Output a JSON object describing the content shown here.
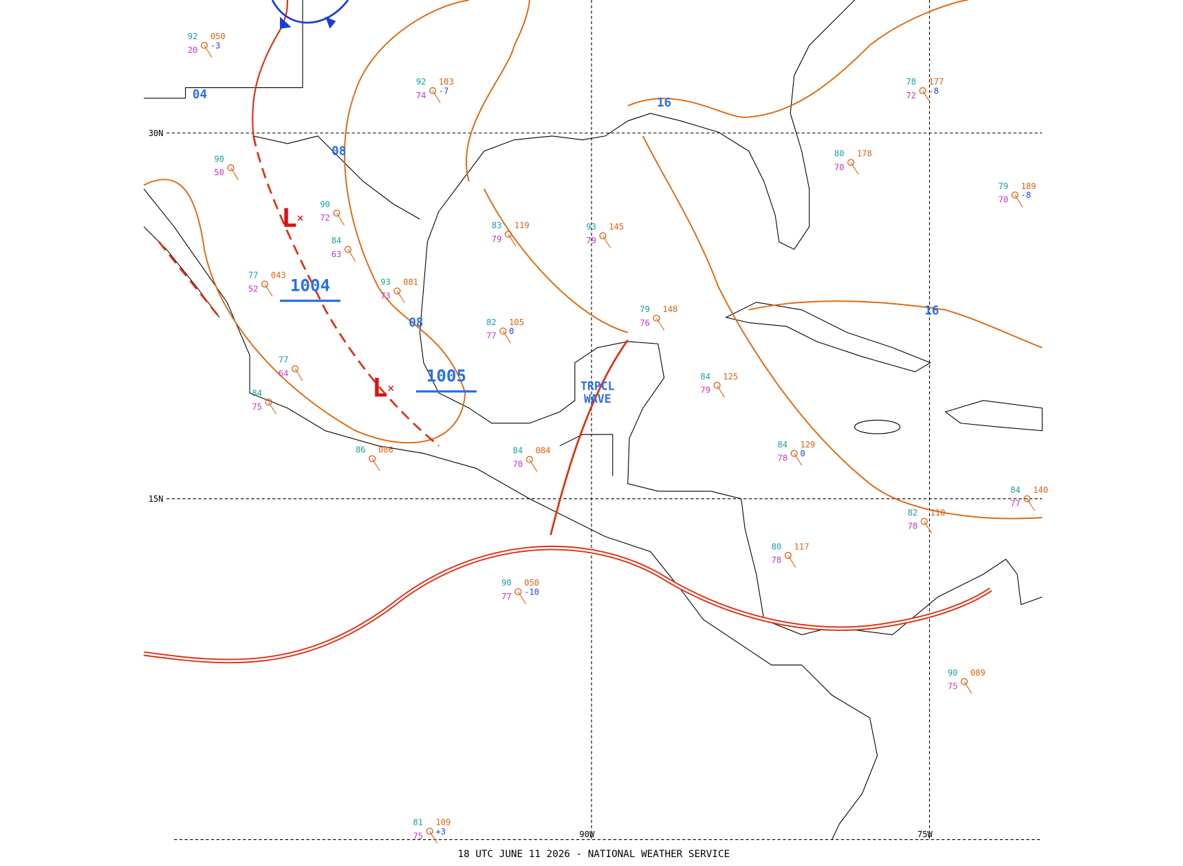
{
  "footer": "18 UTC JUNE 11 2026 - NATIONAL WEATHER SERVICE",
  "grid_labels": {
    "lat_30": "30N",
    "lat_15": "15N",
    "lon_90": "90W",
    "lon_75": "75W"
  },
  "pressure_centers": [
    {
      "symbol": "L",
      "value": "1004"
    },
    {
      "symbol": "L",
      "value": "1005"
    }
  ],
  "isobar_labels": [
    "08",
    "08",
    "16",
    "16",
    "04"
  ],
  "tropical_wave": [
    "TRPCL",
    "WAVE"
  ],
  "stations": [
    {
      "temp": "92",
      "pres": "050",
      "dew": "20",
      "tend": "-3"
    },
    {
      "temp": "90",
      "dew": "50"
    },
    {
      "temp": "90",
      "dew": "72"
    },
    {
      "temp": "84",
      "dew": "63"
    },
    {
      "temp": "77",
      "pres": "043",
      "dew": "52"
    },
    {
      "temp": "77",
      "dew": "64"
    },
    {
      "temp": "84",
      "dew": "75"
    },
    {
      "temp": "86",
      "pres": "086"
    },
    {
      "temp": "84",
      "pres": "084",
      "dew": "70"
    },
    {
      "temp": "90",
      "pres": "050",
      "dew": "77",
      "tend": "-10"
    },
    {
      "temp": "82",
      "pres": "105",
      "dew": "77",
      "tend": "0"
    },
    {
      "temp": "93",
      "pres": "145",
      "dew": "79"
    },
    {
      "temp": "83",
      "pres": "119",
      "dew": "79"
    },
    {
      "temp": "80",
      "pres": "178",
      "dew": "70"
    },
    {
      "temp": "79",
      "pres": "189",
      "dew": "70",
      "tend": "-8"
    },
    {
      "temp": "80",
      "pres": "117",
      "dew": "78"
    },
    {
      "temp": "82",
      "pres": "110",
      "dew": "78"
    },
    {
      "temp": "84",
      "pres": "129",
      "dew": "78",
      "tend": "0"
    },
    {
      "temp": "84",
      "pres": "125",
      "dew": "79"
    },
    {
      "temp": "79",
      "pres": "148",
      "dew": "76"
    },
    {
      "temp": "84",
      "pres": "140",
      "dew": "77"
    },
    {
      "temp": "81",
      "pres": "109",
      "dew": "75",
      "tend": "+3"
    },
    {
      "temp": "90",
      "pres": "089",
      "dew": "75"
    },
    {
      "temp": "78",
      "pres": "177",
      "dew": "72",
      "tend": "-8"
    },
    {
      "temp": "92",
      "pres": "103",
      "dew": "74",
      "tend": "-7"
    },
    {
      "temp": "93",
      "pres": "081",
      "dew": "73"
    }
  ]
}
